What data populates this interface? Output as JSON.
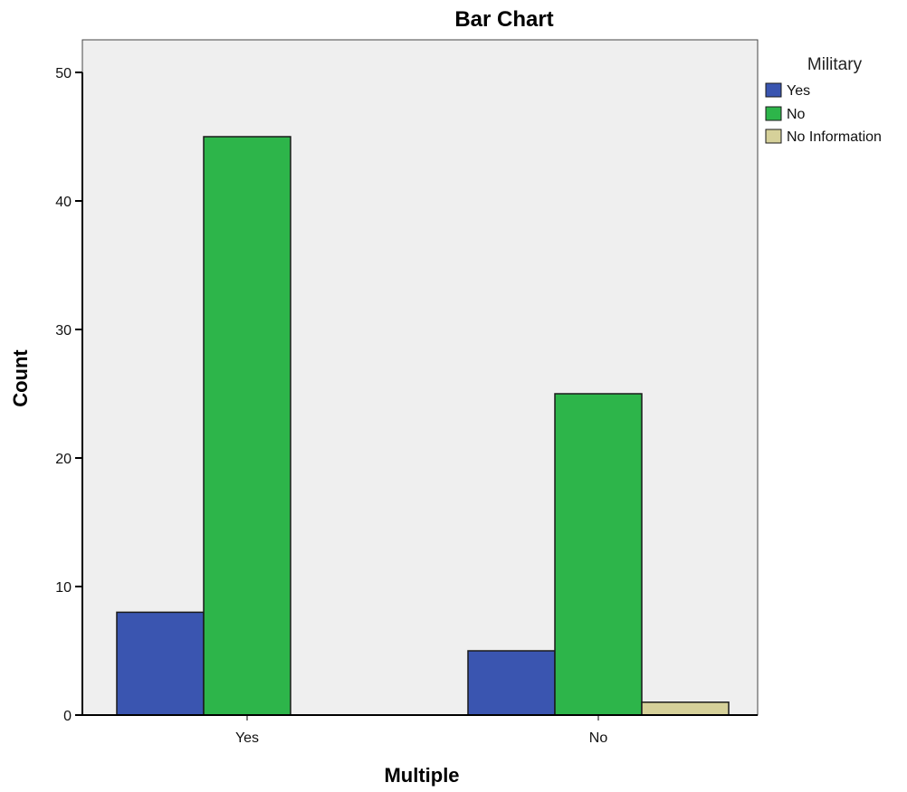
{
  "chart_data": {
    "type": "bar",
    "title": "Bar Chart",
    "xlabel": "Multiple",
    "ylabel": "Count",
    "categories": [
      "Yes",
      "No"
    ],
    "ylim": [
      0,
      52
    ],
    "yticks": [
      0,
      10,
      20,
      30,
      40,
      50
    ],
    "legend": {
      "title": "Military",
      "placement": "right"
    },
    "series": [
      {
        "name": "Yes",
        "values": [
          8,
          5
        ],
        "color": "#3a55b0"
      },
      {
        "name": "No",
        "values": [
          45,
          25
        ],
        "color": "#2db54a"
      },
      {
        "name": "No Information",
        "values": [
          0,
          1
        ],
        "color": "#d6d19a"
      }
    ],
    "colors": {
      "plot_background": "#efefef",
      "axis": "#000000"
    }
  }
}
